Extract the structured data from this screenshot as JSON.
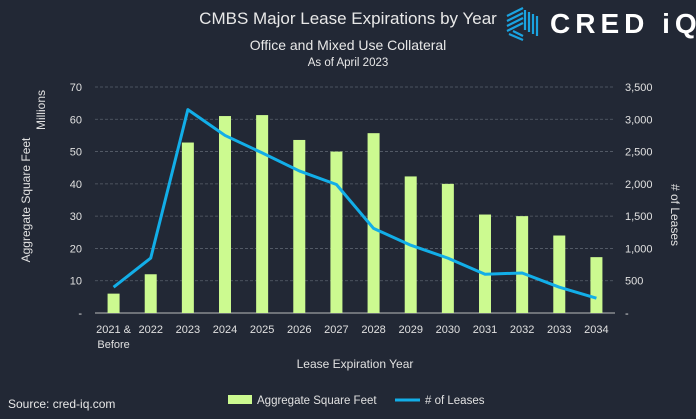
{
  "logo": {
    "text": "CRED iQ",
    "color": "#1aa3e0"
  },
  "source": "Source: cred-iq.com",
  "chart_data": {
    "type": "bar",
    "title": "CMBS Major Lease Expirations by Year",
    "subtitle": "Office and Mixed Use Collateral",
    "subtitle2": "As of April 2023",
    "xlabel": "Lease Expiration Year",
    "ylabel": "Aggregate Square Feet",
    "ylabel_units": "Millions",
    "y2label": "# of Leases",
    "categories": [
      "2021 & Before",
      "2022",
      "2023",
      "2024",
      "2025",
      "2026",
      "2027",
      "2028",
      "2029",
      "2030",
      "2031",
      "2032",
      "2033",
      "2034"
    ],
    "ylim": [
      0,
      70
    ],
    "yticks": [
      "-",
      "10",
      "20",
      "30",
      "40",
      "50",
      "60",
      "70"
    ],
    "y2lim": [
      0,
      3500
    ],
    "y2ticks": [
      "-",
      "500",
      "1,000",
      "1,500",
      "2,000",
      "2,500",
      "3,000",
      "3,500"
    ],
    "grid": true,
    "legend": "bottom",
    "series": [
      {
        "name": "Aggregate Square Feet",
        "type": "bar",
        "axis": "left",
        "color": "#ccfa90",
        "values": [
          6,
          12,
          52.8,
          61,
          61.3,
          53.6,
          50,
          55.7,
          42.3,
          40,
          30.5,
          30,
          24,
          17.3
        ]
      },
      {
        "name": "# of Leases",
        "type": "line",
        "axis": "right",
        "color": "#12aee8",
        "values": [
          400,
          850,
          3150,
          2750,
          2480,
          2200,
          1990,
          1310,
          1050,
          850,
          600,
          620,
          400,
          230
        ]
      }
    ]
  }
}
